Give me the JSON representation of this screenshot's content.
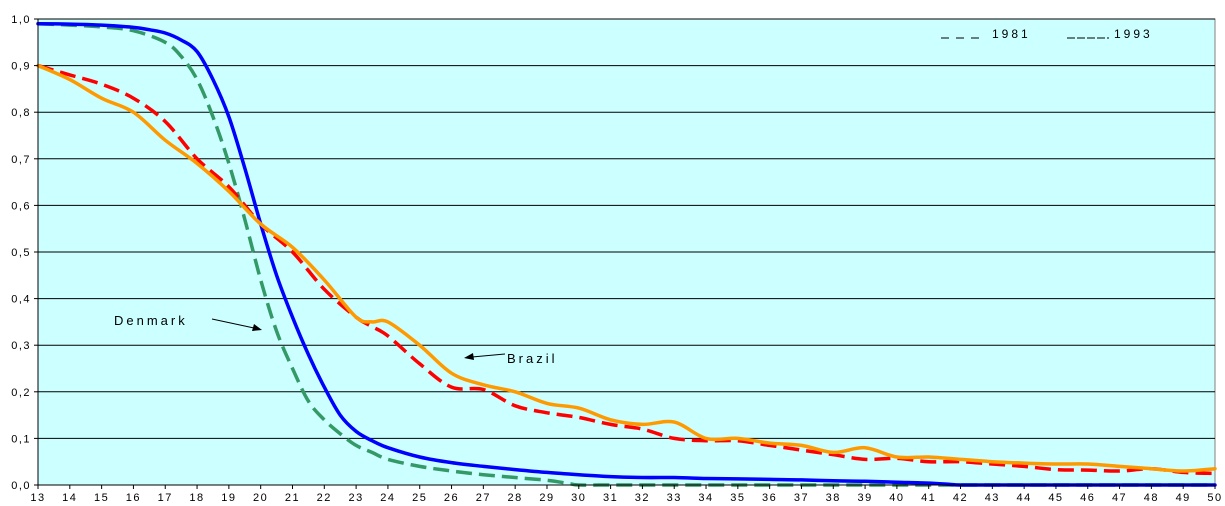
{
  "chart_data": {
    "type": "line",
    "title": "",
    "xlabel": "",
    "ylabel": "",
    "xlim": [
      13,
      50
    ],
    "ylim": [
      0,
      1
    ],
    "grid": "horizontal",
    "background_color": "#ccffff",
    "x_ticks": [
      13,
      14,
      15,
      16,
      17,
      18,
      19,
      20,
      21,
      22,
      23,
      24,
      25,
      26,
      27,
      28,
      29,
      30,
      31,
      32,
      33,
      34,
      35,
      36,
      37,
      38,
      39,
      40,
      41,
      42,
      43,
      44,
      45,
      46,
      47,
      48,
      49,
      50
    ],
    "y_ticks": [
      "0,0",
      "0,1",
      "0,2",
      "0,3",
      "0,4",
      "0,5",
      "0,6",
      "0,7",
      "0,8",
      "0,9",
      "1,0"
    ],
    "legend": {
      "position": "top-right",
      "entries": [
        {
          "label": "1981",
          "style": "dashed"
        },
        {
          "label": "1993",
          "style": "solid"
        }
      ]
    },
    "annotations": [
      {
        "text": "Denmark",
        "points_to": "Denmark 1981 curve near x=20.3"
      },
      {
        "text": "Brazil",
        "points_to": "Brazil curve near x=25.8"
      }
    ],
    "series": [
      {
        "name": "Denmark 1981",
        "style": "dashed",
        "color": "#339966",
        "x": [
          13,
          14,
          15,
          16,
          17,
          17.5,
          18,
          18.5,
          19,
          19.5,
          20,
          20.5,
          21,
          21.5,
          22,
          22.5,
          23,
          23.5,
          24,
          25,
          26,
          27,
          28,
          29,
          29.7,
          30,
          31,
          32,
          33,
          34,
          35,
          36,
          37,
          38,
          39,
          40,
          41,
          42,
          43,
          44,
          45,
          46,
          47,
          48,
          49,
          50
        ],
        "y": [
          0.99,
          0.987,
          0.983,
          0.975,
          0.95,
          0.92,
          0.87,
          0.79,
          0.69,
          0.57,
          0.44,
          0.33,
          0.25,
          0.18,
          0.14,
          0.11,
          0.085,
          0.07,
          0.055,
          0.04,
          0.03,
          0.022,
          0.016,
          0.01,
          0.003,
          0,
          0,
          0,
          0,
          0,
          0,
          0,
          0,
          0,
          0,
          0,
          0,
          0,
          0,
          0,
          0,
          0,
          0,
          0,
          0,
          0
        ]
      },
      {
        "name": "Denmark 1993",
        "style": "solid",
        "color": "#0000ff",
        "x": [
          13,
          14,
          15,
          16,
          16.5,
          17,
          17.5,
          18,
          18.5,
          19,
          19.5,
          20,
          20.5,
          21,
          21.5,
          22,
          22.5,
          23,
          23.5,
          24,
          25,
          26,
          27,
          28,
          29,
          30,
          31,
          32,
          33,
          34,
          35,
          36,
          37,
          38,
          39,
          40,
          41,
          41.7,
          42,
          43,
          44,
          45,
          46,
          47,
          48,
          49,
          50
        ],
        "y": [
          0.99,
          0.989,
          0.987,
          0.982,
          0.977,
          0.97,
          0.955,
          0.93,
          0.87,
          0.79,
          0.68,
          0.56,
          0.45,
          0.36,
          0.28,
          0.21,
          0.15,
          0.115,
          0.095,
          0.08,
          0.06,
          0.048,
          0.04,
          0.033,
          0.027,
          0.022,
          0.018,
          0.016,
          0.016,
          0.014,
          0.013,
          0.012,
          0.011,
          0.009,
          0.008,
          0.006,
          0.004,
          0.001,
          0,
          0,
          0,
          0,
          0,
          0,
          0,
          0,
          0
        ]
      },
      {
        "name": "Brazil 1981",
        "style": "dashed",
        "color": "#ff0000",
        "x": [
          13,
          14,
          15,
          16,
          17,
          18,
          19,
          20,
          21,
          22,
          23,
          23.5,
          24,
          25,
          26,
          27,
          28,
          29,
          30,
          31,
          32,
          33,
          34,
          35,
          36,
          37,
          38,
          39,
          40,
          41,
          42,
          43,
          44,
          45,
          46,
          47,
          48,
          49,
          50
        ],
        "y": [
          0.9,
          0.88,
          0.86,
          0.83,
          0.78,
          0.7,
          0.64,
          0.56,
          0.5,
          0.42,
          0.36,
          0.34,
          0.32,
          0.26,
          0.21,
          0.205,
          0.17,
          0.155,
          0.145,
          0.13,
          0.12,
          0.1,
          0.095,
          0.095,
          0.085,
          0.075,
          0.065,
          0.055,
          0.057,
          0.05,
          0.05,
          0.045,
          0.04,
          0.033,
          0.032,
          0.03,
          0.035,
          0.027,
          0.025
        ]
      },
      {
        "name": "Brazil 1993",
        "style": "solid",
        "color": "#ff9900",
        "x": [
          13,
          14,
          15,
          16,
          17,
          18,
          19,
          20,
          21,
          22,
          23,
          23.5,
          24,
          25,
          26,
          27,
          28,
          29,
          30,
          31,
          32,
          33,
          34,
          35,
          36,
          37,
          38,
          39,
          40,
          41,
          42,
          43,
          44,
          45,
          46,
          47,
          48,
          49,
          50
        ],
        "y": [
          0.9,
          0.87,
          0.83,
          0.8,
          0.74,
          0.69,
          0.63,
          0.56,
          0.51,
          0.44,
          0.36,
          0.35,
          0.35,
          0.3,
          0.24,
          0.215,
          0.2,
          0.175,
          0.165,
          0.14,
          0.13,
          0.135,
          0.1,
          0.1,
          0.09,
          0.085,
          0.07,
          0.08,
          0.06,
          0.06,
          0.055,
          0.05,
          0.047,
          0.045,
          0.045,
          0.04,
          0.035,
          0.03,
          0.035
        ]
      }
    ]
  }
}
